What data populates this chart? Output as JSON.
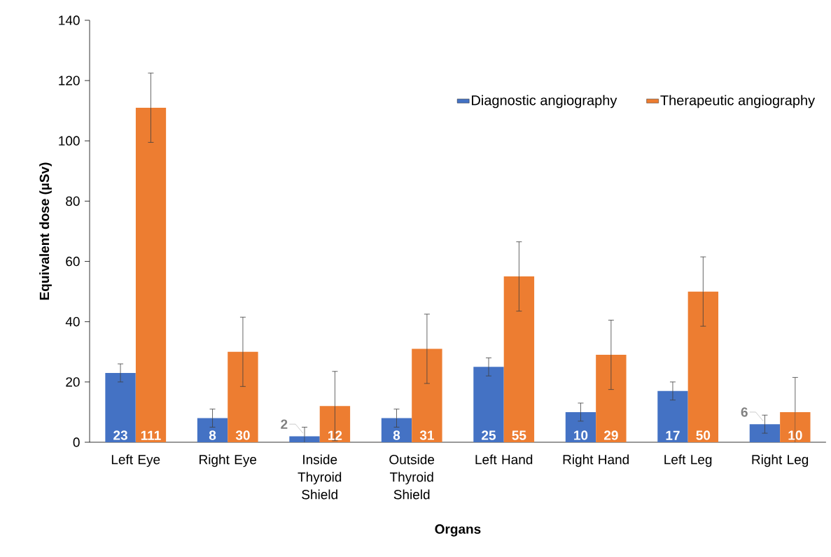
{
  "chart_data": {
    "type": "bar",
    "xlabel": "Organs",
    "ylabel": "Equivalent dose (µSv)",
    "categories": [
      "Left Eye",
      "Right Eye",
      "Inside Thyroid Shield",
      "Outside Thyroid Shield",
      "Left Hand",
      "Right Hand",
      "Left Leg",
      "Right Leg"
    ],
    "series": [
      {
        "name": "Diagnostic angiography",
        "color": "#4472c4",
        "values": [
          23,
          8,
          2,
          8,
          25,
          10,
          17,
          6
        ],
        "errors": [
          3,
          3,
          3,
          3,
          3,
          3,
          3,
          3
        ]
      },
      {
        "name": "Therapeutic angiography",
        "color": "#ed7d31",
        "values": [
          111,
          30,
          12,
          31,
          55,
          29,
          50,
          10
        ],
        "errors": [
          11.5,
          11.5,
          11.5,
          11.5,
          11.5,
          11.5,
          11.5,
          11.5
        ]
      }
    ],
    "ylim": [
      0,
      140
    ],
    "yticks": [
      0,
      20,
      40,
      60,
      80,
      100,
      120,
      140
    ],
    "data_labels": true,
    "grid": false,
    "legend": "top right"
  }
}
